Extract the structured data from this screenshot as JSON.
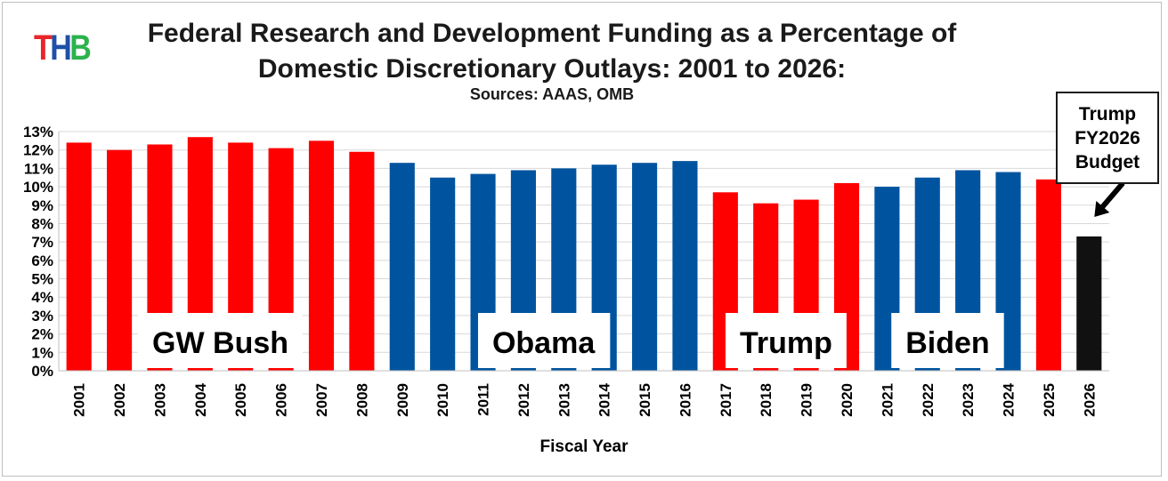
{
  "logo": {
    "letters": [
      "T",
      "H",
      "B"
    ],
    "colors": [
      "#e8262b",
      "#1f4fa8",
      "#2bb24c"
    ]
  },
  "chart_data": {
    "type": "bar",
    "title": "Federal Research and Development Funding as a Percentage of Domestic Discretionary Outlays: 2001 to 2026:",
    "title_lines": [
      "Federal Research and Development Funding as a Percentage of",
      "Domestic Discretionary Outlays: 2001 to 2026:"
    ],
    "subtitle": "Sources: AAAS, OMB",
    "xlabel": "Fiscal Year",
    "ylabel": "",
    "ylim": [
      0,
      13
    ],
    "yticks": [
      "0%",
      "1%",
      "2%",
      "3%",
      "4%",
      "5%",
      "6%",
      "7%",
      "8%",
      "9%",
      "10%",
      "11%",
      "12%",
      "13%"
    ],
    "grid": true,
    "categories": [
      "2001",
      "2002",
      "2003",
      "2004",
      "2005",
      "2006",
      "2007",
      "2008",
      "2009",
      "2010",
      "2011",
      "2012",
      "2013",
      "2014",
      "2015",
      "2016",
      "2017",
      "2018",
      "2019",
      "2020",
      "2021",
      "2022",
      "2023",
      "2024",
      "2025",
      "2026"
    ],
    "values": [
      12.4,
      12.0,
      12.3,
      12.7,
      12.4,
      12.1,
      12.5,
      11.9,
      11.3,
      10.5,
      10.7,
      10.9,
      11.0,
      11.2,
      11.3,
      11.4,
      9.7,
      9.1,
      9.3,
      10.2,
      10.0,
      10.5,
      10.9,
      10.8,
      10.4,
      7.3
    ],
    "party": [
      "R",
      "R",
      "R",
      "R",
      "R",
      "R",
      "R",
      "R",
      "D",
      "D",
      "D",
      "D",
      "D",
      "D",
      "D",
      "D",
      "R",
      "R",
      "R",
      "R",
      "D",
      "D",
      "D",
      "D",
      "R",
      "P"
    ],
    "colors": {
      "R": "#ff0000",
      "D": "#00549f",
      "P": "#111111"
    },
    "administrations": [
      {
        "name": "GW Bush",
        "from": "2001",
        "to": "2008"
      },
      {
        "name": "Obama",
        "from": "2009",
        "to": "2016"
      },
      {
        "name": "Trump",
        "from": "2017",
        "to": "2020"
      },
      {
        "name": "Biden",
        "from": "2021",
        "to": "2024"
      }
    ],
    "annotation": {
      "lines": [
        "Trump",
        "FY2026",
        "Budget"
      ],
      "points_to": "2026"
    }
  }
}
